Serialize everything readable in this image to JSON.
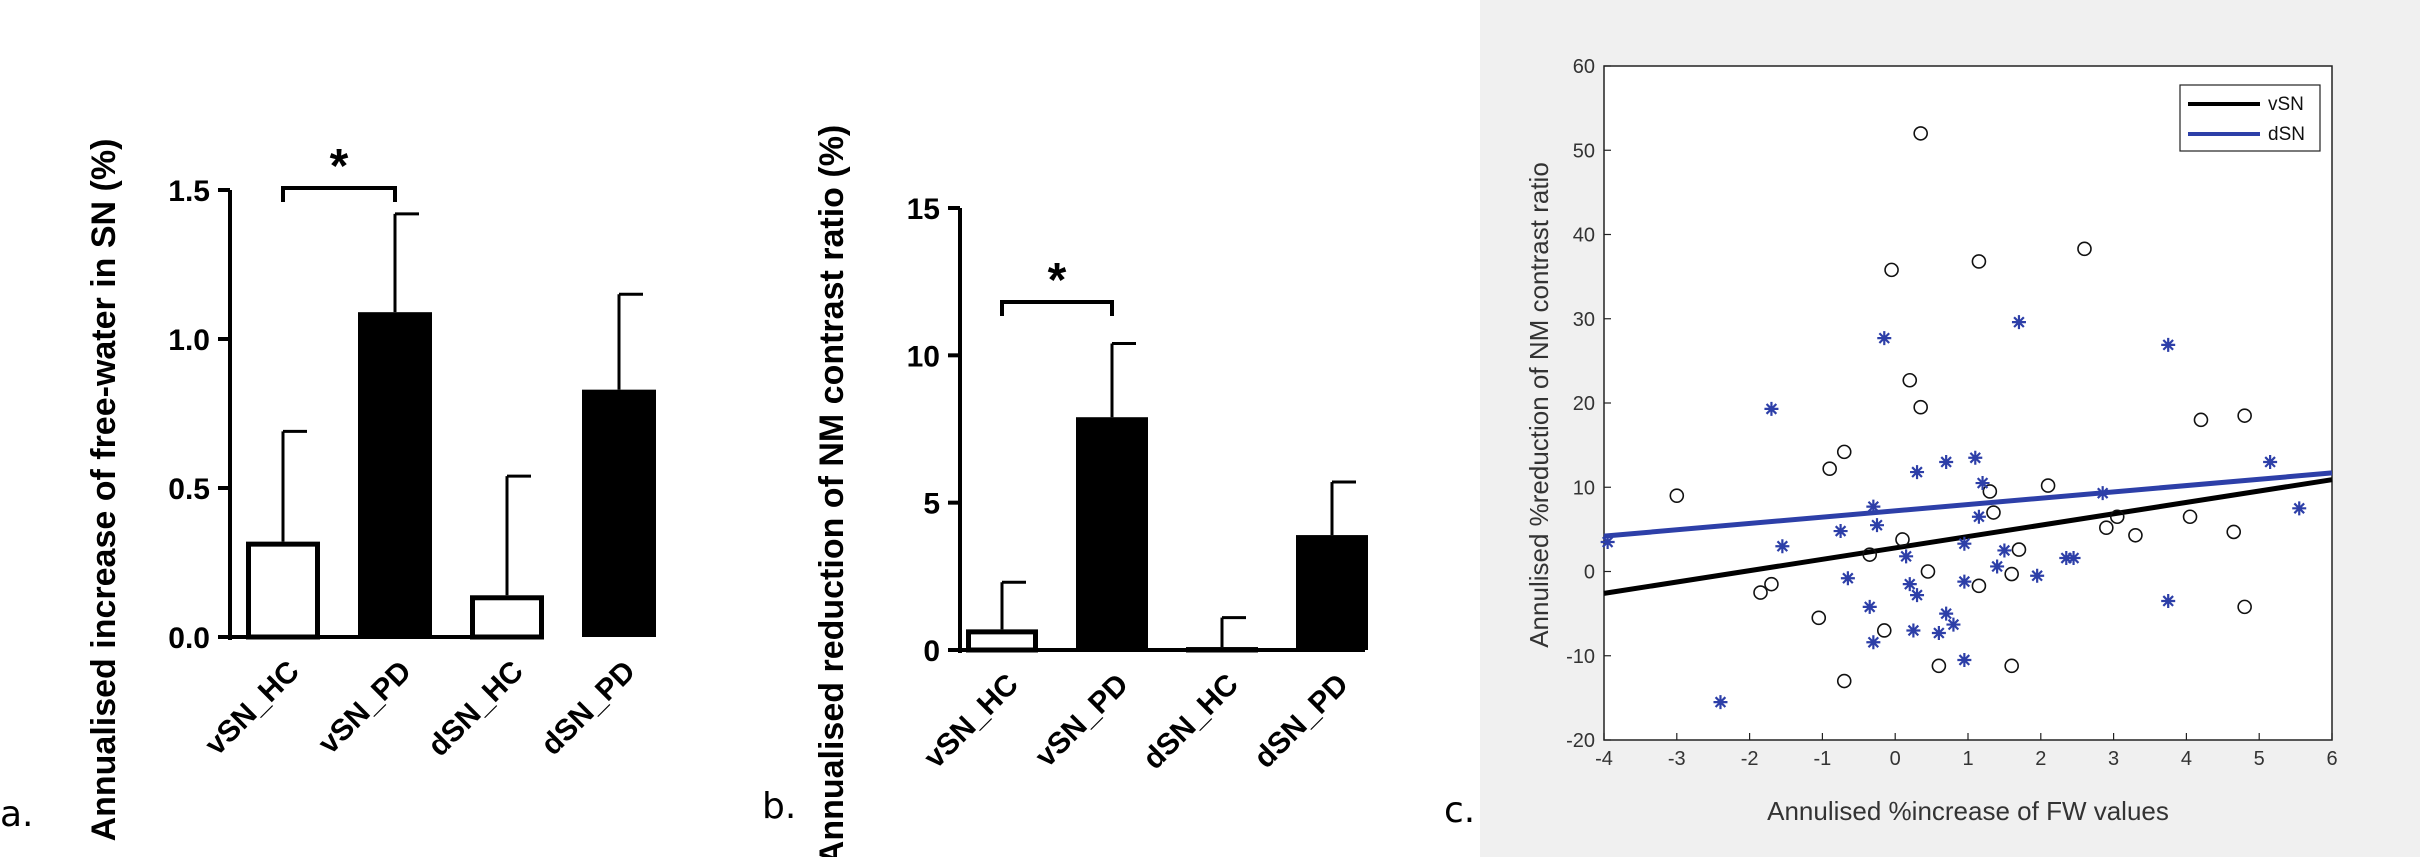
{
  "panel_labels": [
    "a.",
    "b.",
    "c."
  ],
  "colors": {
    "bar_open": "#ffffff",
    "bar_filled": "#000000",
    "scatter_bg": "#f0f0f0",
    "vsn": "#000000",
    "dsn": "#2d3fa8"
  },
  "chart_data": [
    {
      "type": "bar",
      "ylabel": "Annualised increase of free-water in SN (%)",
      "categories": [
        "vSN_HC",
        "vSN_PD",
        "dSN_HC",
        "dSN_PD"
      ],
      "values": [
        0.32,
        1.09,
        0.14,
        0.83
      ],
      "errors": [
        0.37,
        0.33,
        0.4,
        0.32
      ],
      "filled": [
        false,
        true,
        false,
        true
      ],
      "ylim": [
        0,
        1.5
      ],
      "yticks": [
        "0.0",
        "0.5",
        "1.0",
        "1.5"
      ],
      "significance": {
        "between": [
          0,
          1
        ],
        "label": "*"
      }
    },
    {
      "type": "bar",
      "ylabel": "Annualised reduction of NM contrast ratio (%)",
      "categories": [
        "vSN_HC",
        "vSN_PD",
        "dSN_HC",
        "dSN_PD"
      ],
      "values": [
        0.7,
        7.9,
        0.1,
        3.9
      ],
      "errors": [
        1.6,
        2.5,
        1.0,
        1.8
      ],
      "filled": [
        false,
        true,
        false,
        true
      ],
      "ylim": [
        0,
        15
      ],
      "yticks": [
        "0",
        "5",
        "10",
        "15"
      ],
      "significance": {
        "between": [
          0,
          1
        ],
        "label": "*"
      }
    },
    {
      "type": "scatter",
      "xlabel": "Annulised %increase of FW values",
      "ylabel": "Annulised %reduction of NM contrast ratio",
      "xlim": [
        -4,
        6
      ],
      "ylim": [
        -20,
        60
      ],
      "xticks": [
        "-4",
        "-3",
        "-2",
        "-1",
        "0",
        "1",
        "2",
        "3",
        "4",
        "5",
        "6"
      ],
      "yticks": [
        "-20",
        "-10",
        "0",
        "10",
        "20",
        "30",
        "40",
        "50",
        "60"
      ],
      "legend": [
        "vSN",
        "dSN"
      ],
      "series": [
        {
          "name": "vSN",
          "marker": "circle",
          "points": [
            [
              0.35,
              52
            ],
            [
              2.6,
              38.3
            ],
            [
              1.15,
              36.8
            ],
            [
              -0.05,
              35.8
            ],
            [
              0.2,
              22.7
            ],
            [
              0.35,
              19.5
            ],
            [
              4.2,
              18
            ],
            [
              4.8,
              18.5
            ],
            [
              -0.9,
              12.2
            ],
            [
              -0.7,
              14.2
            ],
            [
              -3,
              9
            ],
            [
              2.1,
              10.2
            ],
            [
              1.3,
              9.5
            ],
            [
              1.35,
              7
            ],
            [
              2.9,
              5.2
            ],
            [
              3.05,
              6.5
            ],
            [
              4.05,
              6.5
            ],
            [
              4.65,
              4.7
            ],
            [
              3.3,
              4.3
            ],
            [
              0.1,
              3.8
            ],
            [
              1.7,
              2.6
            ],
            [
              -0.35,
              2
            ],
            [
              -1.7,
              -1.5
            ],
            [
              -1.85,
              -2.5
            ],
            [
              1.6,
              -0.3
            ],
            [
              -1.05,
              -5.5
            ],
            [
              -0.15,
              -7
            ],
            [
              0.6,
              -11.2
            ],
            [
              1.6,
              -11.2
            ],
            [
              -0.7,
              -13
            ],
            [
              4.8,
              -4.2
            ],
            [
              1.15,
              -1.7
            ],
            [
              0.45,
              0
            ]
          ]
        },
        {
          "name": "dSN",
          "marker": "asterisk",
          "points": [
            [
              -0.15,
              27.7
            ],
            [
              1.7,
              29.6
            ],
            [
              3.75,
              26.9
            ],
            [
              -1.7,
              19.3
            ],
            [
              0.3,
              11.8
            ],
            [
              0.7,
              13
            ],
            [
              1.1,
              13.5
            ],
            [
              5.15,
              13
            ],
            [
              5.55,
              7.5
            ],
            [
              1.15,
              6.5
            ],
            [
              2.85,
              9.3
            ],
            [
              1.2,
              10.5
            ],
            [
              -0.3,
              7.7
            ],
            [
              -0.25,
              5.5
            ],
            [
              -0.75,
              4.8
            ],
            [
              -1.55,
              3
            ],
            [
              -3.95,
              3.5
            ],
            [
              0.15,
              1.8
            ],
            [
              0.95,
              3.3
            ],
            [
              1.5,
              2.5
            ],
            [
              2.35,
              1.6
            ],
            [
              2.45,
              1.6
            ],
            [
              1.4,
              0.6
            ],
            [
              -0.65,
              -0.8
            ],
            [
              0.2,
              -1.5
            ],
            [
              0.95,
              -1.2
            ],
            [
              1.95,
              -0.5
            ],
            [
              0.3,
              -2.8
            ],
            [
              -0.35,
              -4.2
            ],
            [
              0.7,
              -5
            ],
            [
              0.8,
              -6.3
            ],
            [
              0.25,
              -7
            ],
            [
              0.6,
              -7.3
            ],
            [
              -0.3,
              -8.4
            ],
            [
              0.95,
              -10.5
            ],
            [
              3.75,
              -3.5
            ],
            [
              -2.4,
              -15.5
            ]
          ]
        }
      ],
      "fits": [
        {
          "name": "vSN",
          "x": [
            -4,
            6
          ],
          "y": [
            -2.6,
            10.9
          ]
        },
        {
          "name": "dSN",
          "x": [
            -4,
            6
          ],
          "y": [
            4.2,
            11.7
          ]
        }
      ]
    }
  ]
}
